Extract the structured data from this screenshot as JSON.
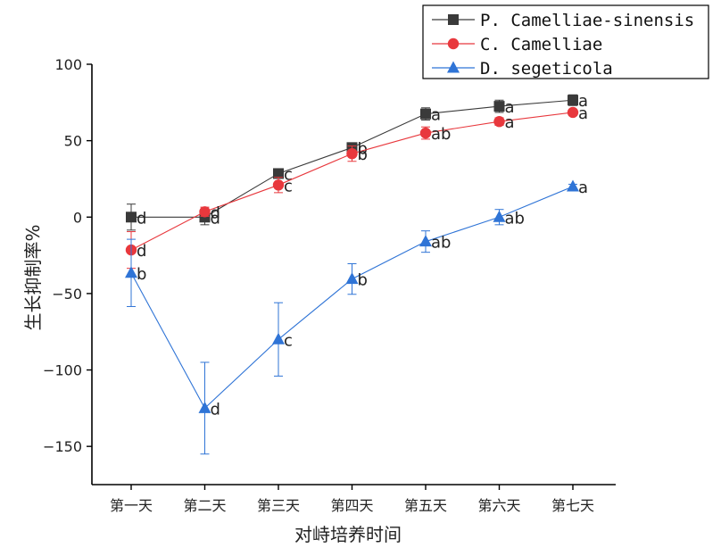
{
  "chart_data": {
    "type": "line",
    "title": "",
    "xlabel": "对峙培养时间",
    "ylabel": "生长抑制率%",
    "categories": [
      "第一天",
      "第二天",
      "第三天",
      "第四天",
      "第五天",
      "第六天",
      "第七天"
    ],
    "ylim": [
      -175,
      100
    ],
    "yticks": [
      100,
      50,
      0,
      -50,
      -100,
      -150
    ],
    "grid": false,
    "legend_position": "top-right",
    "series": [
      {
        "name": "P. Camelliae-sinensis",
        "color": "#3a3a3a",
        "marker": "square",
        "values": [
          0,
          0,
          28.5,
          45.5,
          67.5,
          72.5,
          76.5
        ],
        "errors": [
          8.5,
          5,
          2.5,
          2.5,
          4,
          4,
          3.5
        ],
        "labels": [
          "d",
          "d",
          "c",
          "b",
          "a",
          "a",
          "a"
        ]
      },
      {
        "name": "C. Camelliae",
        "color": "#e8383d",
        "marker": "circle",
        "values": [
          -21.5,
          3.5,
          21,
          41.5,
          55,
          62.5,
          68.5
        ],
        "errors": [
          12,
          3,
          5,
          5,
          4,
          2.5,
          2
        ],
        "labels": [
          "d",
          "d",
          "c",
          "b",
          "ab",
          "a",
          "a"
        ]
      },
      {
        "name": "D. segeticola",
        "color": "#2f74d6",
        "marker": "triangle",
        "values": [
          -36.5,
          -125,
          -80,
          -40.5,
          -16,
          0,
          20
        ],
        "errors": [
          22,
          30,
          24,
          10,
          7,
          5,
          1.5
        ],
        "labels": [
          "b",
          "d",
          "c",
          "b",
          "ab",
          "ab",
          "a"
        ]
      }
    ]
  }
}
